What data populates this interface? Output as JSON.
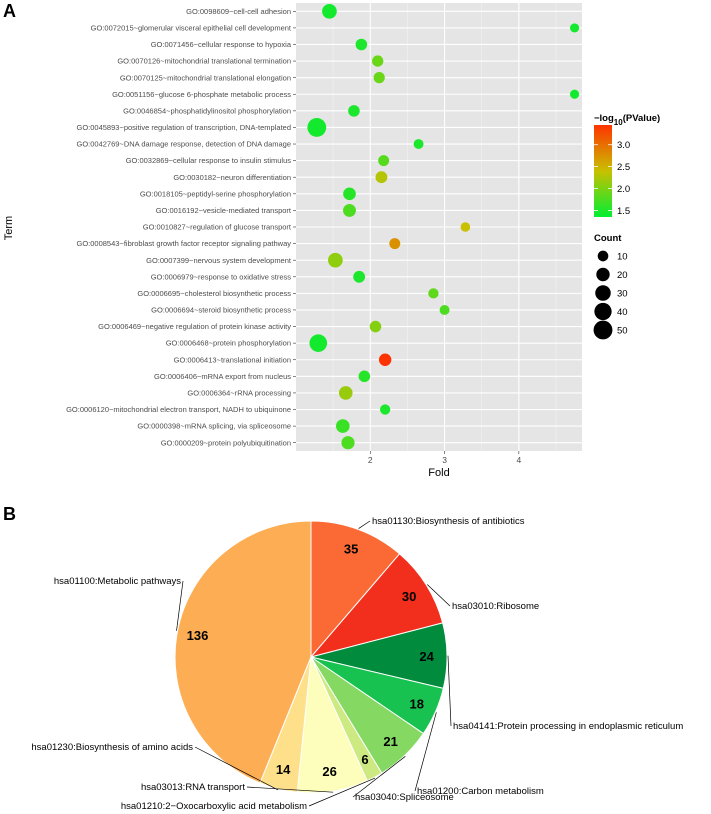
{
  "chart_data": [
    {
      "panel": "A",
      "type": "scatter",
      "xlabel": "Fold",
      "ylabel": "Term",
      "xlim": [
        1.0,
        4.85
      ],
      "xticks": [
        2,
        3,
        4
      ],
      "grid": true,
      "color_legend": {
        "title_prefix": "−log",
        "title_sub": "10",
        "title_suffix": "(PValue)",
        "range": [
          1.35,
          3.45
        ],
        "ticks": [
          3.0,
          2.5,
          2.0,
          1.5
        ],
        "tick_labels": [
          "3.0",
          "2.5",
          "2.0",
          "1.5"
        ],
        "colors": [
          "#00ee33",
          "#c8c000",
          "#ff3300"
        ]
      },
      "size_legend": {
        "title": "Count",
        "values": [
          10,
          20,
          30,
          40,
          50
        ],
        "labels": [
          "10",
          "20",
          "30",
          "40",
          "50"
        ]
      },
      "points": [
        {
          "term": "GO:0098609~cell-cell adhesion",
          "fold": 1.45,
          "logp": 1.45,
          "count": 26
        },
        {
          "term": "GO:0072015~glomerular visceral epithelial cell development",
          "fold": 4.75,
          "logp": 1.45,
          "count": 6
        },
        {
          "term": "GO:0071456~cellular response to hypoxia",
          "fold": 1.88,
          "logp": 1.5,
          "count": 13
        },
        {
          "term": "GO:0070126~mitochondrial translational termination",
          "fold": 2.1,
          "logp": 1.9,
          "count": 12
        },
        {
          "term": "GO:0070125~mitochondrial translational elongation",
          "fold": 2.12,
          "logp": 1.9,
          "count": 12
        },
        {
          "term": "GO:0051156~glucose 6-phosphate metabolic process",
          "fold": 4.75,
          "logp": 1.45,
          "count": 6
        },
        {
          "term": "GO:0046854~phosphatidylinositol phosphorylation",
          "fold": 1.78,
          "logp": 1.5,
          "count": 13
        },
        {
          "term": "GO:0045893~positive regulation of transcription, DNA-templated",
          "fold": 1.28,
          "logp": 1.45,
          "count": 50
        },
        {
          "term": "GO:0042769~DNA damage response, detection of DNA damage",
          "fold": 2.65,
          "logp": 1.5,
          "count": 8
        },
        {
          "term": "GO:0032869~cellular response to insulin stimulus",
          "fold": 2.18,
          "logp": 1.8,
          "count": 11
        },
        {
          "term": "GO:0030182~neuron differentiation",
          "fold": 2.15,
          "logp": 2.3,
          "count": 14
        },
        {
          "term": "GO:0018105~peptidyl-serine phosphorylation",
          "fold": 1.72,
          "logp": 1.55,
          "count": 17
        },
        {
          "term": "GO:0016192~vesicle-mediated transport",
          "fold": 1.72,
          "logp": 1.75,
          "count": 18
        },
        {
          "term": "GO:0010827~regulation of glucose transport",
          "fold": 3.28,
          "logp": 2.4,
          "count": 7
        },
        {
          "term": "GO:0008543~fibroblast growth factor receptor signaling pathway",
          "fold": 2.33,
          "logp": 2.75,
          "count": 11
        },
        {
          "term": "GO:0007399~nervous system development",
          "fold": 1.53,
          "logp": 2.1,
          "count": 26
        },
        {
          "term": "GO:0006979~response to oxidative stress",
          "fold": 1.85,
          "logp": 1.5,
          "count": 14
        },
        {
          "term": "GO:0006695~cholesterol biosynthetic process",
          "fold": 2.85,
          "logp": 1.85,
          "count": 9
        },
        {
          "term": "GO:0006694~steroid biosynthetic process",
          "fold": 3.0,
          "logp": 1.75,
          "count": 8
        },
        {
          "term": "GO:0006469~negative regulation of protein kinase activity",
          "fold": 2.07,
          "logp": 2.05,
          "count": 13
        },
        {
          "term": "GO:0006468~protein phosphorylation",
          "fold": 1.3,
          "logp": 1.45,
          "count": 42
        },
        {
          "term": "GO:0006413~translational initiation",
          "fold": 2.2,
          "logp": 3.45,
          "count": 16
        },
        {
          "term": "GO:0006406~mRNA export from nucleus",
          "fold": 1.92,
          "logp": 1.55,
          "count": 13
        },
        {
          "term": "GO:0006364~rRNA processing",
          "fold": 1.67,
          "logp": 2.15,
          "count": 21
        },
        {
          "term": "GO:0006120~mitochondrial electron transport, NADH to ubiquinone",
          "fold": 2.2,
          "logp": 1.5,
          "count": 9
        },
        {
          "term": "GO:0000398~mRNA splicing, via spliceosome",
          "fold": 1.63,
          "logp": 1.65,
          "count": 21
        },
        {
          "term": "GO:0000209~protein polyubiquitination",
          "fold": 1.7,
          "logp": 1.75,
          "count": 19
        }
      ]
    },
    {
      "panel": "B",
      "type": "pie",
      "slices": [
        {
          "label": "hsa01130:Biosynthesis of antibiotics",
          "value": 35,
          "color": "#fb6a35"
        },
        {
          "label": "hsa03010:Ribosome",
          "value": 30,
          "color": "#f22e1c"
        },
        {
          "label": "hsa04141:Protein processing in endoplasmic reticulum",
          "value": 24,
          "color": "#008c3c"
        },
        {
          "label": "hsa01200:Carbon metabolism",
          "value": 18,
          "color": "#18c250"
        },
        {
          "label": "hsa03040:Spliceosome",
          "value": 21,
          "color": "#85d962"
        },
        {
          "label": "hsa01210:2−Oxocarboxylic acid metabolism",
          "value": 6,
          "color": "#cde981"
        },
        {
          "label": "hsa03013:RNA transport",
          "value": 26,
          "color": "#fdfebc"
        },
        {
          "label": "hsa01230:Biosynthesis of amino acids",
          "value": 14,
          "color": "#fee08b"
        },
        {
          "label": "hsa01100:Metabolic pathways",
          "value": 136,
          "color": "#fdae55"
        }
      ]
    }
  ]
}
